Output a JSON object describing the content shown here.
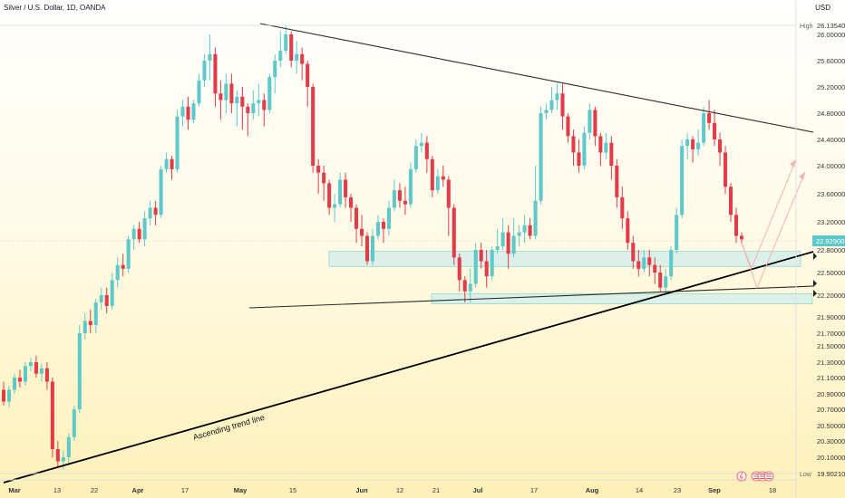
{
  "header": {
    "title": "Silver / U.S. Dollar, 1D, OANDA",
    "currency": "USD"
  },
  "colors": {
    "bull": "#5fc9c9",
    "bear": "#e23c4b",
    "zone_fill": "#d6f0ea",
    "zone_stroke": "#8fd4c4",
    "projection": "#f2b4b4",
    "line": "#2b2b2b",
    "current_price_bg": "#5fc9c9"
  },
  "chart_data": {
    "type": "candlestick",
    "yticks": [
      "26.00000",
      "25.60000",
      "25.20000",
      "24.80000",
      "24.40000",
      "24.00000",
      "23.60000",
      "23.20000",
      "22.80000",
      "22.50000",
      "22.20000",
      "21.90000",
      "21.70000",
      "21.50000",
      "21.30000",
      "21.10000",
      "20.90000",
      "20.70000",
      "20.50000",
      "20.30000",
      "20.10000"
    ],
    "high_label": "High",
    "high_value": "26.13540",
    "low_label": "Low",
    "low_value": "19.90210",
    "current_price": "22.92900",
    "xticks": [
      "Mar",
      "13",
      "22",
      "Apr",
      "17",
      "May",
      "15",
      "Jun",
      "12",
      "21",
      "Jul",
      "17",
      "Aug",
      "14",
      "23",
      "Sep",
      "18"
    ],
    "annotation": "Ascending trend line",
    "candles": [
      [
        20.95,
        20.8,
        21.05,
        20.75
      ],
      [
        20.8,
        20.95,
        21.0,
        20.72
      ],
      [
        20.95,
        21.1,
        21.15,
        20.9
      ],
      [
        21.1,
        21.05,
        21.2,
        20.98
      ],
      [
        21.05,
        21.25,
        21.3,
        21.0
      ],
      [
        21.25,
        21.3,
        21.35,
        21.18
      ],
      [
        21.3,
        21.15,
        21.38,
        21.1
      ],
      [
        21.15,
        21.22,
        21.28,
        21.05
      ],
      [
        21.22,
        21.05,
        21.3,
        20.95
      ],
      [
        21.05,
        20.2,
        21.1,
        20.1
      ],
      [
        20.2,
        20.05,
        20.3,
        19.98
      ],
      [
        20.05,
        20.1,
        20.18,
        19.95
      ],
      [
        20.1,
        20.35,
        20.4,
        20.0
      ],
      [
        20.35,
        20.7,
        20.75,
        20.3
      ],
      [
        20.7,
        21.7,
        21.8,
        20.65
      ],
      [
        21.7,
        21.85,
        21.95,
        21.6
      ],
      [
        21.85,
        21.8,
        22.0,
        21.7
      ],
      [
        21.8,
        22.1,
        22.15,
        21.7
      ],
      [
        22.1,
        22.2,
        22.3,
        22.0
      ],
      [
        22.2,
        22.05,
        22.3,
        21.95
      ],
      [
        22.05,
        22.4,
        22.5,
        22.0
      ],
      [
        22.4,
        22.6,
        22.7,
        22.3
      ],
      [
        22.6,
        22.55,
        22.75,
        22.45
      ],
      [
        22.55,
        22.95,
        23.0,
        22.5
      ],
      [
        22.95,
        23.1,
        23.15,
        22.8
      ],
      [
        23.1,
        22.95,
        23.2,
        22.9
      ],
      [
        22.95,
        23.25,
        23.35,
        22.85
      ],
      [
        23.25,
        23.4,
        23.5,
        23.15
      ],
      [
        23.4,
        23.3,
        23.5,
        23.15
      ],
      [
        23.3,
        23.95,
        24.0,
        23.25
      ],
      [
        23.95,
        24.1,
        24.2,
        23.9
      ],
      [
        24.1,
        23.95,
        24.15,
        23.8
      ],
      [
        23.95,
        24.75,
        24.85,
        23.9
      ],
      [
        24.75,
        24.9,
        25.0,
        24.6
      ],
      [
        24.9,
        24.7,
        25.05,
        24.55
      ],
      [
        24.7,
        24.95,
        25.0,
        24.65
      ],
      [
        24.95,
        25.3,
        25.4,
        24.9
      ],
      [
        25.3,
        25.6,
        25.7,
        25.2
      ],
      [
        25.6,
        25.7,
        26.0,
        25.3
      ],
      [
        25.7,
        25.1,
        25.8,
        24.9
      ],
      [
        25.1,
        25.0,
        25.3,
        24.7
      ],
      [
        25.0,
        25.25,
        25.4,
        24.8
      ],
      [
        25.25,
        24.95,
        25.4,
        24.8
      ],
      [
        24.95,
        25.05,
        25.15,
        24.6
      ],
      [
        25.05,
        24.9,
        25.2,
        24.55
      ],
      [
        24.9,
        24.8,
        24.95,
        24.45
      ],
      [
        24.8,
        24.95,
        25.15,
        24.7
      ],
      [
        24.95,
        25.0,
        25.25,
        24.75
      ],
      [
        25.0,
        24.85,
        25.1,
        24.6
      ],
      [
        24.85,
        25.35,
        25.4,
        24.8
      ],
      [
        25.35,
        25.6,
        25.7,
        25.1
      ],
      [
        25.6,
        25.75,
        26.05,
        25.5
      ],
      [
        25.75,
        26.0,
        26.13,
        25.7
      ],
      [
        26.0,
        25.6,
        26.05,
        25.5
      ],
      [
        25.6,
        25.7,
        25.9,
        25.4
      ],
      [
        25.7,
        25.55,
        25.8,
        25.3
      ],
      [
        25.55,
        25.2,
        25.6,
        24.9
      ],
      [
        25.2,
        24.0,
        25.25,
        23.9
      ],
      [
        24.0,
        23.9,
        24.1,
        23.6
      ],
      [
        23.9,
        23.75,
        24.0,
        23.5
      ],
      [
        23.75,
        23.4,
        23.8,
        23.3
      ],
      [
        23.4,
        23.45,
        23.6,
        23.2
      ],
      [
        23.45,
        23.8,
        23.9,
        23.4
      ],
      [
        23.8,
        23.55,
        23.9,
        23.4
      ],
      [
        23.55,
        23.4,
        23.6,
        23.2
      ],
      [
        23.4,
        23.1,
        23.45,
        22.9
      ],
      [
        23.1,
        23.0,
        23.3,
        22.85
      ],
      [
        23.0,
        22.65,
        23.05,
        22.6
      ],
      [
        22.65,
        23.0,
        23.1,
        22.6
      ],
      [
        23.0,
        23.2,
        23.3,
        22.95
      ],
      [
        23.2,
        23.1,
        23.25,
        22.9
      ],
      [
        23.1,
        23.4,
        23.5,
        23.0
      ],
      [
        23.4,
        23.65,
        23.8,
        23.35
      ],
      [
        23.65,
        23.5,
        23.75,
        23.4
      ],
      [
        23.5,
        23.45,
        23.7,
        23.3
      ],
      [
        23.45,
        23.95,
        24.05,
        23.4
      ],
      [
        23.95,
        24.3,
        24.4,
        23.9
      ],
      [
        24.3,
        24.35,
        24.5,
        24.2
      ],
      [
        24.35,
        24.1,
        24.45,
        23.9
      ],
      [
        24.1,
        23.65,
        24.15,
        23.55
      ],
      [
        23.65,
        23.85,
        23.95,
        23.6
      ],
      [
        23.85,
        23.8,
        24.0,
        23.7
      ],
      [
        23.8,
        23.4,
        23.85,
        23.0
      ],
      [
        23.4,
        22.7,
        23.45,
        22.6
      ],
      [
        22.7,
        22.4,
        22.75,
        22.25
      ],
      [
        22.4,
        22.25,
        22.45,
        22.1
      ],
      [
        22.25,
        22.35,
        22.55,
        22.1
      ],
      [
        22.35,
        22.8,
        22.9,
        22.3
      ],
      [
        22.8,
        22.65,
        22.9,
        22.55
      ],
      [
        22.65,
        22.45,
        22.8,
        22.3
      ],
      [
        22.45,
        22.8,
        22.85,
        22.4
      ],
      [
        22.8,
        22.85,
        23.1,
        22.75
      ],
      [
        22.85,
        23.05,
        23.25,
        22.8
      ],
      [
        23.05,
        22.75,
        23.15,
        22.55
      ],
      [
        22.75,
        23.0,
        23.25,
        22.7
      ],
      [
        23.0,
        23.05,
        23.15,
        22.85
      ],
      [
        23.05,
        23.15,
        23.3,
        22.9
      ],
      [
        23.15,
        23.0,
        23.25,
        22.95
      ],
      [
        23.0,
        23.5,
        24.0,
        22.95
      ],
      [
        23.5,
        24.8,
        24.9,
        23.45
      ],
      [
        24.8,
        24.85,
        24.95,
        24.7
      ],
      [
        24.85,
        25.0,
        25.2,
        24.8
      ],
      [
        25.0,
        25.1,
        25.25,
        24.85
      ],
      [
        25.1,
        24.75,
        25.25,
        24.55
      ],
      [
        24.75,
        24.45,
        24.8,
        24.35
      ],
      [
        24.45,
        24.2,
        24.55,
        24.0
      ],
      [
        24.2,
        24.0,
        24.4,
        23.9
      ],
      [
        24.0,
        24.5,
        24.6,
        23.95
      ],
      [
        24.5,
        24.85,
        24.95,
        24.4
      ],
      [
        24.85,
        24.45,
        24.9,
        24.3
      ],
      [
        24.45,
        24.2,
        24.5,
        24.0
      ],
      [
        24.2,
        24.35,
        24.5,
        24.1
      ],
      [
        24.35,
        24.0,
        24.45,
        23.8
      ],
      [
        24.0,
        23.55,
        24.1,
        23.4
      ],
      [
        23.55,
        23.25,
        23.7,
        23.1
      ],
      [
        23.25,
        22.9,
        23.35,
        22.8
      ],
      [
        22.9,
        22.65,
        23.0,
        22.55
      ],
      [
        22.65,
        22.55,
        22.8,
        22.45
      ],
      [
        22.55,
        22.7,
        22.8,
        22.5
      ],
      [
        22.7,
        22.6,
        22.8,
        22.45
      ],
      [
        22.6,
        22.5,
        22.7,
        22.35
      ],
      [
        22.5,
        22.3,
        22.6,
        22.25
      ],
      [
        22.3,
        22.45,
        22.55,
        22.2
      ],
      [
        22.45,
        22.8,
        22.85,
        22.4
      ],
      [
        22.8,
        23.3,
        23.4,
        22.75
      ],
      [
        23.3,
        24.3,
        24.4,
        23.25
      ],
      [
        24.3,
        24.4,
        24.5,
        24.1
      ],
      [
        24.4,
        24.25,
        24.45,
        24.05
      ],
      [
        24.25,
        24.35,
        24.55,
        24.15
      ],
      [
        24.35,
        24.8,
        24.9,
        24.3
      ],
      [
        24.8,
        24.65,
        25.0,
        24.55
      ],
      [
        24.65,
        24.4,
        24.85,
        24.3
      ],
      [
        24.4,
        24.2,
        24.5,
        24.0
      ],
      [
        24.2,
        23.7,
        24.3,
        23.6
      ],
      [
        23.7,
        23.3,
        23.75,
        23.2
      ],
      [
        23.3,
        23.0,
        23.4,
        22.9
      ],
      [
        23.0,
        22.95,
        23.05,
        22.88
      ]
    ]
  }
}
